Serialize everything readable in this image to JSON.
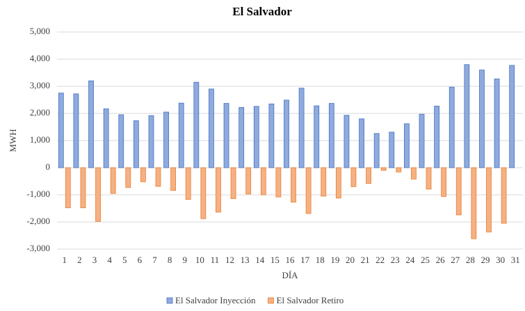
{
  "chart_data": {
    "type": "bar",
    "title": "El Salvador",
    "x_label": "DÍA",
    "y_label": "MWH",
    "categories": [
      "1",
      "2",
      "3",
      "4",
      "5",
      "6",
      "7",
      "8",
      "9",
      "10",
      "11",
      "12",
      "13",
      "14",
      "15",
      "16",
      "17",
      "18",
      "19",
      "20",
      "21",
      "22",
      "23",
      "24",
      "25",
      "26",
      "27",
      "28",
      "29",
      "30",
      "31"
    ],
    "series": [
      {
        "name": "El Salvador Inyección",
        "color": "#8faadc",
        "stroke": "#4472c4",
        "values": [
          2750,
          2720,
          3200,
          2170,
          1950,
          1730,
          1920,
          2050,
          2380,
          3150,
          2900,
          2370,
          2220,
          2260,
          2350,
          2490,
          2930,
          2280,
          2370,
          1930,
          1800,
          1260,
          1310,
          1620,
          1970,
          2270,
          2970,
          3800,
          3600,
          3270,
          3770
        ]
      },
      {
        "name": "El Salvador Retiro",
        "color": "#f4b183",
        "stroke": "#ed7d31",
        "values": [
          -1480,
          -1480,
          -1980,
          -950,
          -730,
          -520,
          -690,
          -840,
          -1170,
          -1880,
          -1640,
          -1140,
          -970,
          -1000,
          -1080,
          -1270,
          -1690,
          -1050,
          -1120,
          -700,
          -580,
          -100,
          -160,
          -420,
          -790,
          -1060,
          -1740,
          -2620,
          -2370,
          -2050,
          0
        ]
      }
    ],
    "ylim": [
      -3000,
      5000
    ],
    "yticks": [
      {
        "value": -3000,
        "label": "-3,000"
      },
      {
        "value": -2000,
        "label": "-2,000"
      },
      {
        "value": -1000,
        "label": "-1,000"
      },
      0,
      {
        "value": 1000,
        "label": "1,000"
      },
      {
        "value": 2000,
        "label": "2,000"
      },
      {
        "value": 3000,
        "label": "3,000"
      },
      {
        "value": 4000,
        "label": "4,000"
      },
      {
        "value": 5000,
        "label": "5,000"
      }
    ],
    "grid": true,
    "legend": "bottom"
  }
}
